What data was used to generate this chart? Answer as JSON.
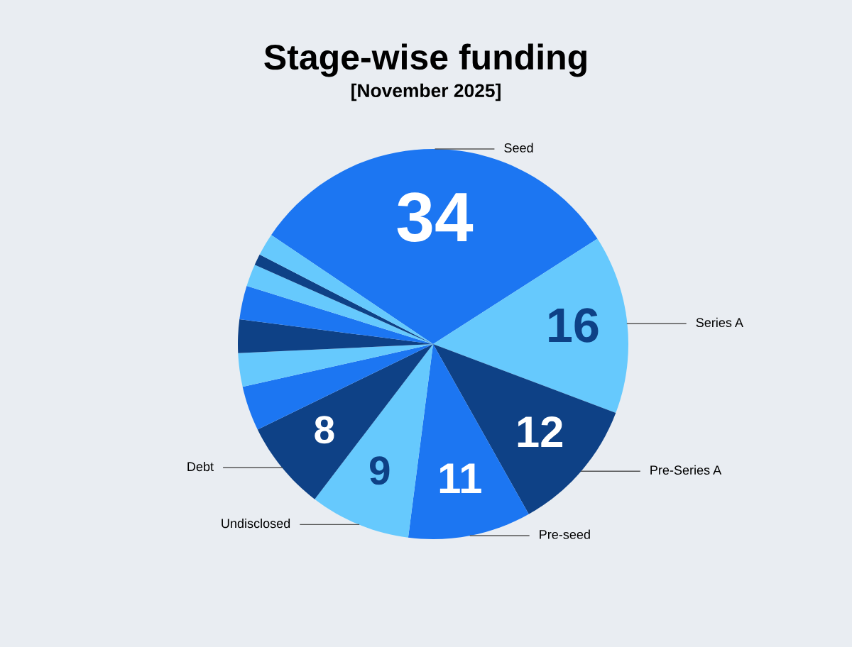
{
  "chart_data": {
    "type": "pie",
    "title": "Stage-wise funding",
    "subtitle": "[November 2025]",
    "categories": [
      "Seed",
      "Series A",
      "Pre-Series A",
      "Pre-seed",
      "Undisclosed",
      "Debt",
      null,
      null,
      null,
      null,
      null,
      null,
      null
    ],
    "values": [
      34,
      16,
      12,
      11,
      9,
      8,
      4,
      3,
      3,
      3,
      2,
      1,
      2
    ],
    "colors": [
      "#1c76f2",
      "#66c9fd",
      "#0e4186",
      "#1c76f2",
      "#66c9fd",
      "#0e4186",
      "#1c76f2",
      "#66c9fd",
      "#0e4186",
      "#1c76f2",
      "#66c9fd",
      "#0e4186",
      "#66c9fd"
    ],
    "value_labels": [
      "34",
      "16",
      "12",
      "11",
      "9",
      "8",
      null,
      null,
      null,
      null,
      null,
      null,
      null
    ],
    "legend": false
  }
}
